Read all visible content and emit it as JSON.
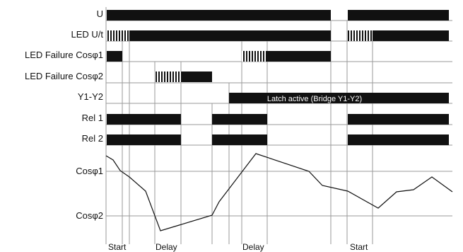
{
  "rows": [
    {
      "label": "U"
    },
    {
      "label": "LED U/t"
    },
    {
      "label": "LED Failure Cosφ1"
    },
    {
      "label": "LED Failure Cosφ2"
    },
    {
      "label": "Y1-Y2"
    },
    {
      "label": "Rel 1"
    },
    {
      "label": "Rel 2"
    }
  ],
  "latch_text": "Latch active (Bridge Y1-Y2)",
  "cos_labels": {
    "cos1": "Cosφ1",
    "cos2": "Cosφ2"
  },
  "events": {
    "start1": "Start",
    "delay1": "Delay",
    "delay2": "Delay",
    "start2": "Start"
  },
  "colors": {
    "bar": "#111111",
    "grid": "#9a9a9a",
    "text": "#111111"
  }
}
